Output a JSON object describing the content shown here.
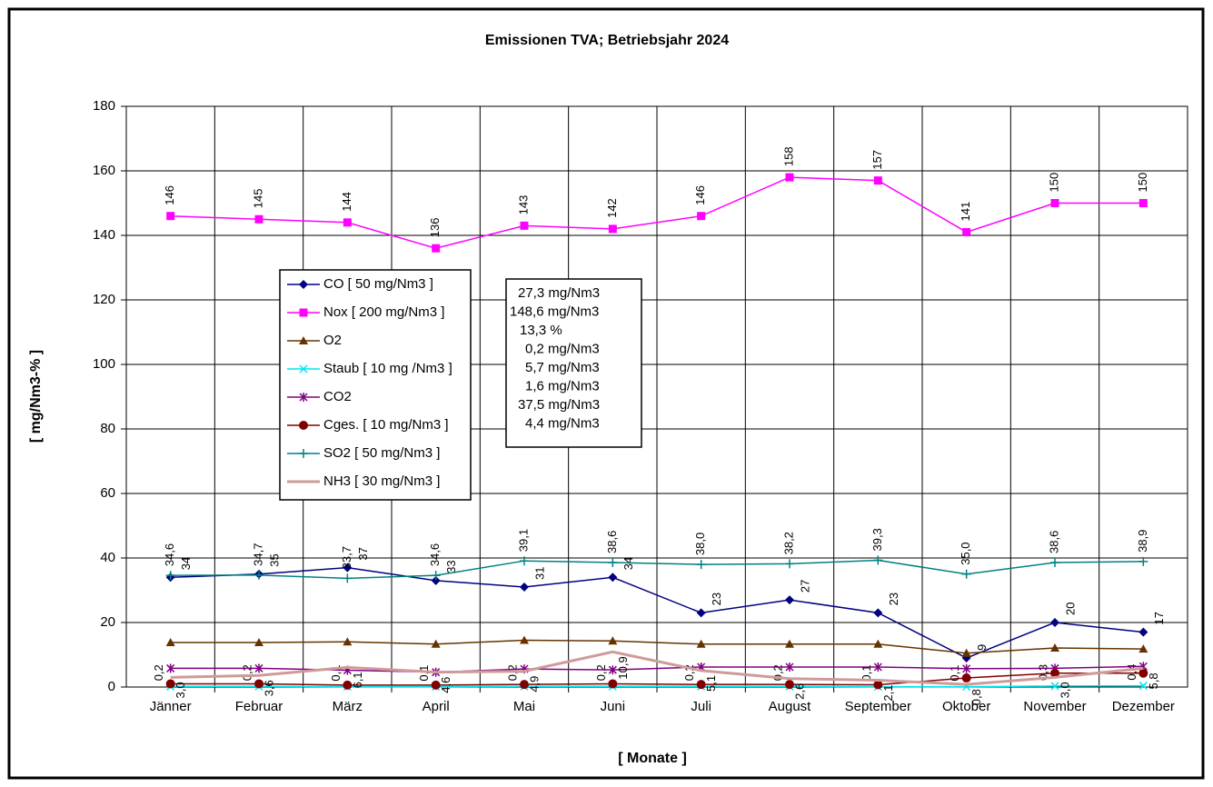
{
  "chart_data": {
    "type": "line",
    "title": "Emissionen TVA;  Betriebsjahr 2024",
    "x_label": "[ Monate ]",
    "y_label": "[ mg/Nm3-% ]",
    "categories": [
      "Jänner",
      "Februar",
      "März",
      "April",
      "Mai",
      "Juni",
      "Juli",
      "August",
      "September",
      "Oktober",
      "November",
      "Dezember"
    ],
    "ylim": [
      0,
      180
    ],
    "yticks": [
      0,
      20,
      40,
      60,
      80,
      100,
      120,
      140,
      160,
      180
    ],
    "grid": true,
    "series": [
      {
        "name": "CO [ 50 mg/Nm3 ]",
        "color": "#000080",
        "marker": "diamond",
        "data_labels": true,
        "values": [
          34,
          35,
          37,
          33,
          31,
          34,
          23,
          27,
          23,
          9,
          20,
          17
        ]
      },
      {
        "name": "Nox [ 200 mg/Nm3 ]",
        "color": "#ff00ff",
        "marker": "square",
        "data_labels": true,
        "values": [
          146,
          145,
          144,
          136,
          143,
          142,
          146,
          158,
          157,
          141,
          150,
          150
        ]
      },
      {
        "name": "O2",
        "color": "#663300",
        "marker": "triangle",
        "values": [
          13.8,
          13.8,
          14,
          13.3,
          14.5,
          14.3,
          13.3,
          13.3,
          13.3,
          10.5,
          12.1,
          11.8
        ]
      },
      {
        "name": "Staub [ 10 mg /Nm3 ]",
        "color": "#00e5ee",
        "marker": "x",
        "data_labels": true,
        "values": [
          0.2,
          0.2,
          0.1,
          0.1,
          0.2,
          0.2,
          0.2,
          0.2,
          0.1,
          0.1,
          0.3,
          0.4
        ],
        "value_labels": [
          "0,2",
          "0,2",
          "0,1",
          "0,1",
          "0,2",
          "0,2",
          "0,2",
          "0,2",
          "0,1",
          "0,1",
          "0,3",
          "0,4"
        ]
      },
      {
        "name": "CO2",
        "color": "#800080",
        "marker": "asterisk",
        "values": [
          5.8,
          5.8,
          5.2,
          4.6,
          5.6,
          5.3,
          6.2,
          6.2,
          6.2,
          5.7,
          5.8,
          6.4
        ]
      },
      {
        "name": "Cges. [ 10 mg/Nm3 ]",
        "color": "#800000",
        "marker": "circle",
        "values": [
          1.0,
          1.0,
          0.6,
          0.6,
          0.8,
          1.0,
          0.8,
          0.8,
          0.7,
          2.8,
          4.3,
          4.3
        ]
      },
      {
        "name": "SO2 [ 50 mg/Nm3 ]",
        "color": "#008080",
        "marker": "plus",
        "data_labels": true,
        "values": [
          34.6,
          34.7,
          33.7,
          34.6,
          39.1,
          38.6,
          38.0,
          38.2,
          39.3,
          35.0,
          38.6,
          38.9
        ],
        "value_labels": [
          "34,6",
          "34,7",
          "33,7",
          "34,6",
          "39,1",
          "38,6",
          "38,0",
          "38,2",
          "39,3",
          "35,0",
          "38,6",
          "38,9"
        ]
      },
      {
        "name": "NH3 [ 30 mg/Nm3 ]",
        "color": "#d09a9a",
        "marker": "none",
        "data_labels": true,
        "values": [
          3.0,
          3.6,
          6.1,
          4.6,
          4.9,
          10.9,
          5.1,
          2.6,
          2.1,
          0.8,
          3.0,
          5.8
        ],
        "value_labels": [
          "3,0",
          "3,6",
          "6,1",
          "4,6",
          "4,9",
          "10,9",
          "5,1",
          "2,6",
          "2,1",
          "0,8",
          "3,0",
          "5,8"
        ]
      }
    ],
    "annotation": [
      "27,3 mg/Nm3",
      "148,6 mg/Nm3",
      "13,3 %",
      "0,2 mg/Nm3",
      "5,7 mg/Nm3",
      "1,6 mg/Nm3",
      "37,5 mg/Nm3",
      "4,4 mg/Nm3"
    ]
  }
}
